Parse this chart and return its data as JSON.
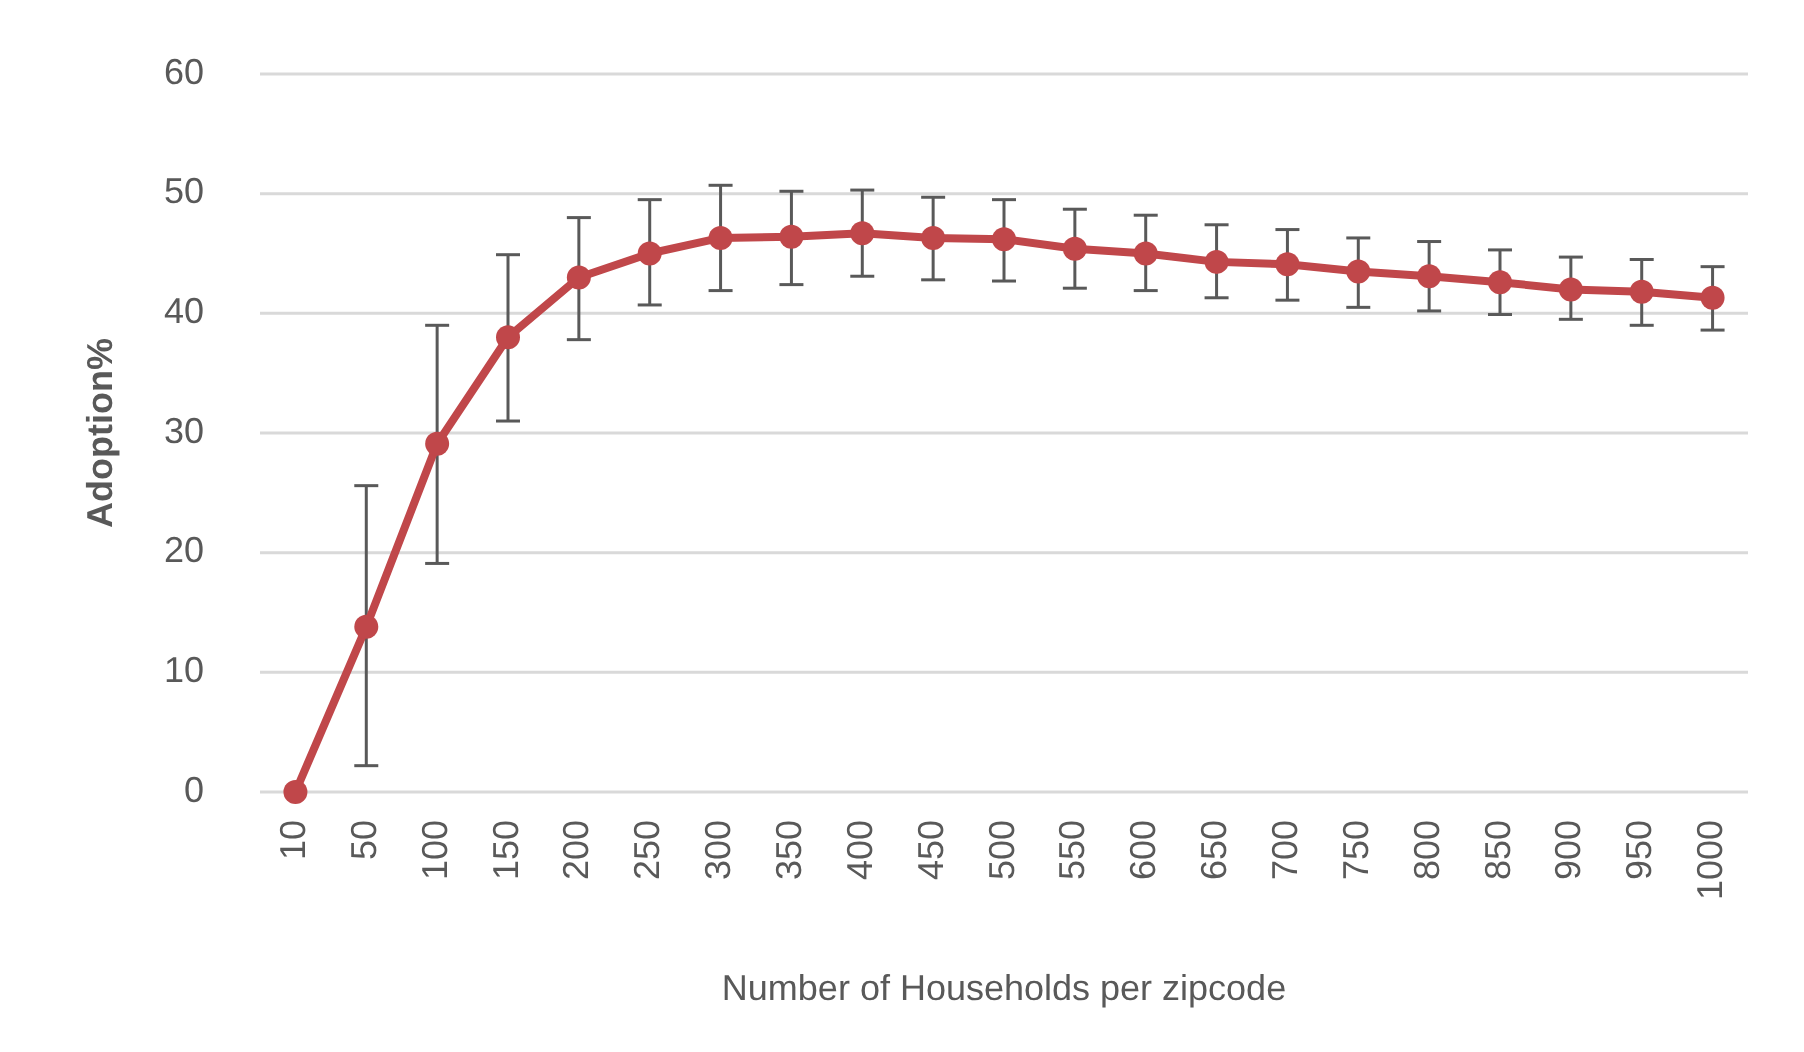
{
  "chart_data": {
    "type": "line",
    "xlabel": "Number of Households per zipcode",
    "ylabel": "Adoption%",
    "categories": [
      "10",
      "50",
      "100",
      "150",
      "200",
      "250",
      "300",
      "350",
      "400",
      "450",
      "500",
      "550",
      "600",
      "650",
      "700",
      "750",
      "800",
      "850",
      "900",
      "950",
      "1000"
    ],
    "series": [
      {
        "color": "#c0474a",
        "values": [
          0,
          13.8,
          29.1,
          38.0,
          43.0,
          45.0,
          46.3,
          46.4,
          46.7,
          46.3,
          46.2,
          45.4,
          45.0,
          44.3,
          44.1,
          43.5,
          43.1,
          42.6,
          42.0,
          41.8,
          41.3
        ],
        "errors": [
          null,
          [
            2.2,
            25.6
          ],
          [
            19.1,
            39.0
          ],
          [
            31.0,
            44.9
          ],
          [
            37.8,
            48.0
          ],
          [
            40.7,
            49.5
          ],
          [
            41.9,
            50.7
          ],
          [
            42.4,
            50.2
          ],
          [
            43.1,
            50.3
          ],
          [
            42.8,
            49.7
          ],
          [
            42.7,
            49.5
          ],
          [
            42.1,
            48.7
          ],
          [
            41.9,
            48.2
          ],
          [
            41.3,
            47.4
          ],
          [
            41.1,
            47.0
          ],
          [
            40.5,
            46.3
          ],
          [
            40.2,
            46.0
          ],
          [
            39.9,
            45.3
          ],
          [
            39.5,
            44.7
          ],
          [
            39.0,
            44.5
          ],
          [
            38.6,
            43.9
          ]
        ]
      }
    ],
    "ylim": [
      0,
      60
    ],
    "yticks": [
      0,
      10,
      20,
      30,
      40,
      50,
      60
    ],
    "grid": "y",
    "marker": "circle",
    "line_style": "solid"
  }
}
